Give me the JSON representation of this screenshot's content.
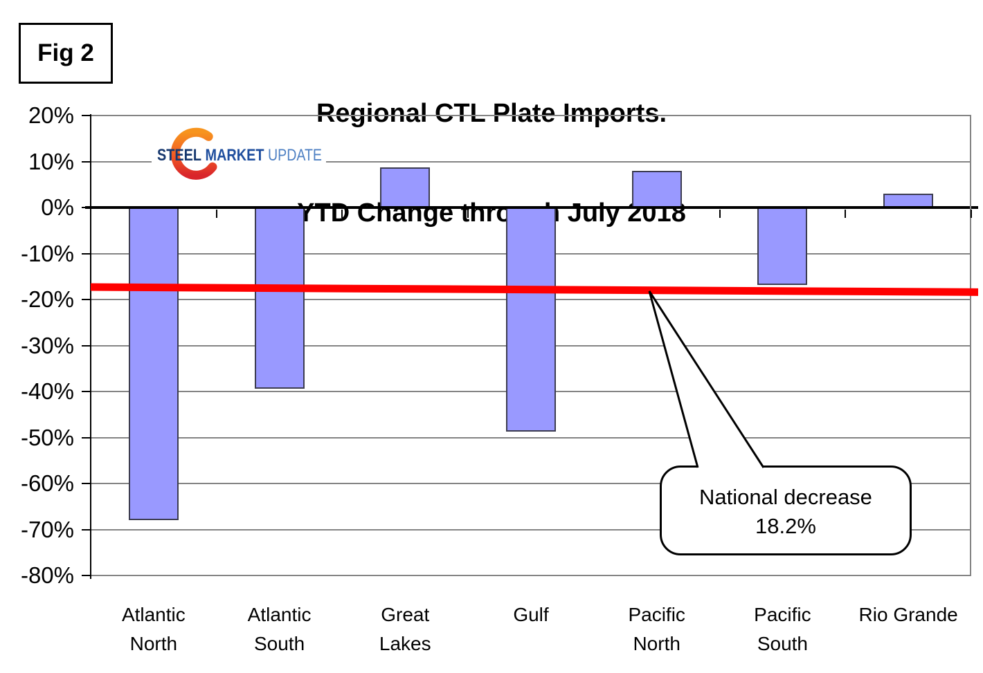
{
  "figure_label": "Fig 2",
  "title": {
    "line1": "Regional CTL Plate Imports.",
    "line2": "YTD Change through July 2018"
  },
  "logo": {
    "word1": "STEEL",
    "word2": "MARKET",
    "word3": "UPDATE",
    "colors": {
      "word1": "#16376E",
      "word2": "#1F4E9E",
      "word3": "#4E80C3",
      "swoosh_top": "#F7941E",
      "swoosh_mid": "#F15A24",
      "swoosh_bottom": "#D9252A"
    }
  },
  "chart_data": {
    "type": "bar",
    "title": "Regional CTL Plate Imports. YTD Change through July 2018",
    "categories": [
      "Atlantic North",
      "Atlantic South",
      "Great Lakes",
      "Gulf",
      "Pacific North",
      "Pacific South",
      "Rio Grande"
    ],
    "xtick_labels": [
      [
        "Atlantic",
        "North"
      ],
      [
        "Atlantic",
        "South"
      ],
      [
        "Great",
        "Lakes"
      ],
      [
        "Gulf"
      ],
      [
        "Pacific",
        "North"
      ],
      [
        "Pacific",
        "South"
      ],
      [
        "Rio Grande"
      ]
    ],
    "values": [
      -68,
      -39.4,
      8.7,
      -48.7,
      7.9,
      -16.8,
      3.0
    ],
    "unit": "%",
    "ylim": [
      -80,
      20
    ],
    "ytick_step": 10,
    "ytick_labels": [
      "20%",
      "10%",
      "0%",
      "-10%",
      "-20%",
      "-30%",
      "-40%",
      "-50%",
      "-60%",
      "-70%",
      "-80%"
    ],
    "grid": true,
    "legend": "none",
    "bar_color": "#9999FF",
    "bar_border_color": "#3C3C50",
    "reference_line": {
      "label": "National decrease 18.2%",
      "value": -18.2,
      "start_value": -17.3,
      "end_value": -18.4,
      "color": "#FF0000"
    }
  },
  "annotation": {
    "line1": "National decrease",
    "line2": "18.2%"
  }
}
